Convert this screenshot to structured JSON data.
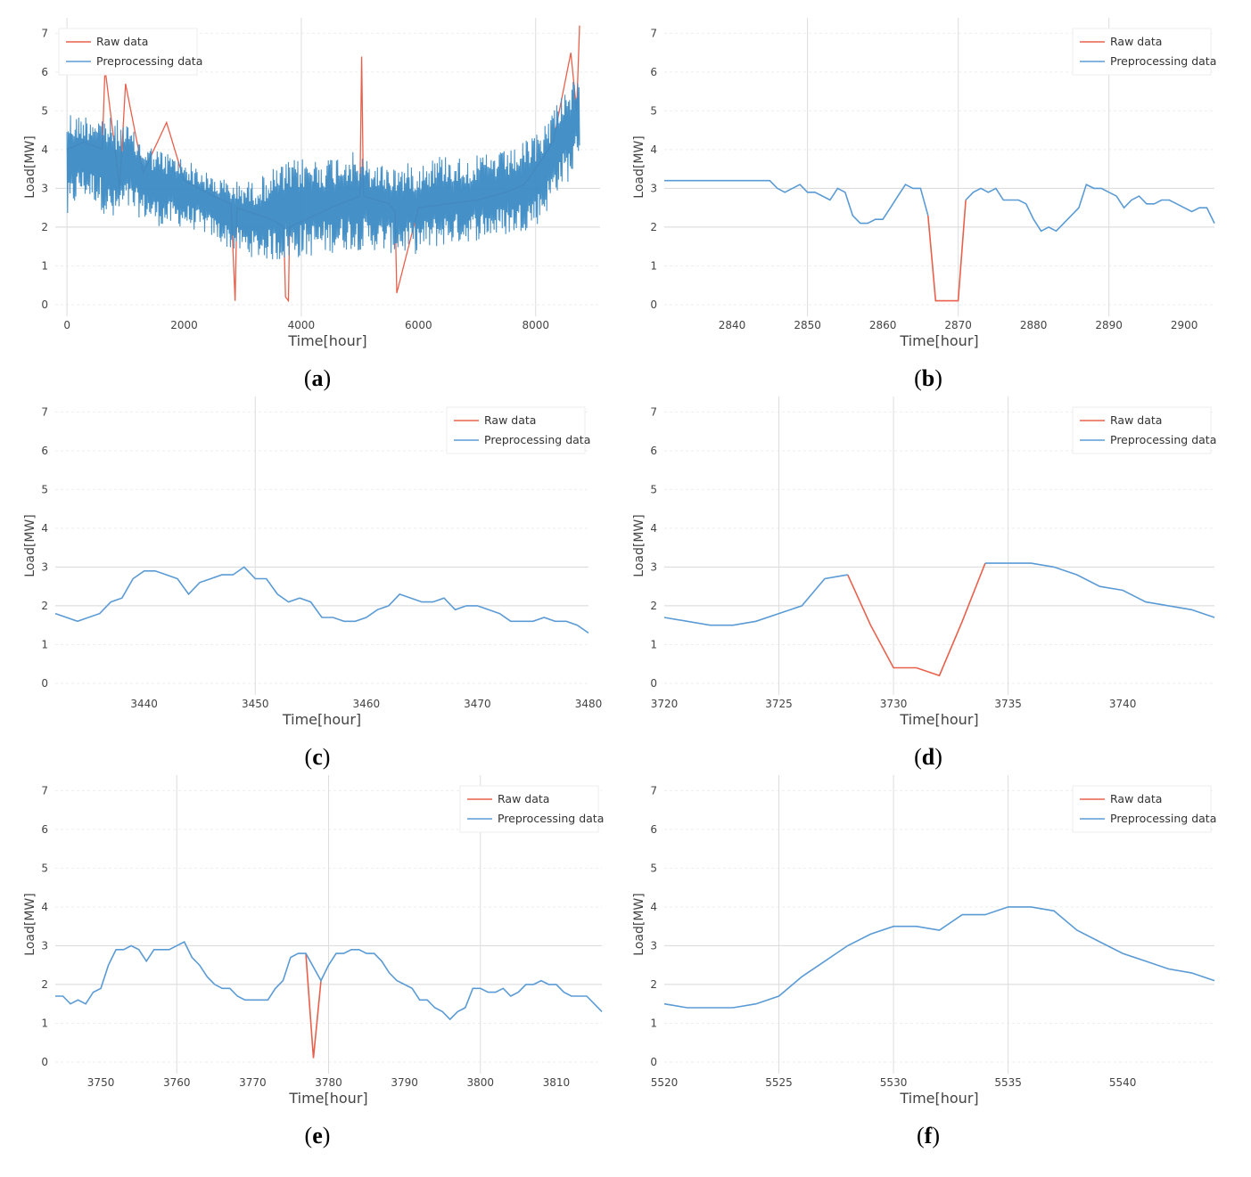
{
  "colors": {
    "raw": "#e8604c",
    "pre": "#5b9bd5",
    "grid": "#e6e6e6",
    "axis": "#555555"
  },
  "legend": [
    "Raw data",
    "Preprocessing data"
  ],
  "captions": [
    {
      "open": "(",
      "letter": "a",
      "close": ")"
    },
    {
      "open": "(",
      "letter": "b",
      "close": ")"
    },
    {
      "open": "(",
      "letter": "c",
      "close": ")"
    },
    {
      "open": "(",
      "letter": "d",
      "close": ")"
    },
    {
      "open": "(",
      "letter": "e",
      "close": ")"
    },
    {
      "open": "(",
      "letter": "f",
      "close": ")"
    }
  ],
  "chart_data": [
    {
      "type": "line",
      "xlabel": "Time[hour]",
      "ylabel": "Load[MW]",
      "xlim": [
        -200,
        9100
      ],
      "ylim": [
        -0.3,
        7.4
      ],
      "xticks": [
        0,
        2000,
        4000,
        6000,
        8000
      ],
      "yticks": [
        0,
        1,
        2,
        3,
        4,
        5,
        6,
        7
      ],
      "gridx": [
        0,
        4000,
        8000
      ],
      "gridy": [
        2,
        3
      ],
      "legend_pos": "top-left",
      "dense": true,
      "series": [
        {
          "name": "Raw data",
          "x": [
            0,
            300,
            600,
            650,
            900,
            1000,
            1300,
            1700,
            2000,
            2500,
            2800,
            2870,
            2900,
            3500,
            3700,
            3730,
            3780,
            3800,
            4500,
            5000,
            5030,
            5060,
            5500,
            5600,
            5630,
            6000,
            7000,
            7500,
            7800,
            8000,
            8300,
            8600,
            8700,
            8750
          ],
          "y": [
            4.0,
            4.2,
            4.0,
            6.1,
            3.0,
            5.7,
            3.4,
            4.7,
            3.2,
            2.8,
            2.6,
            0.1,
            2.5,
            2.2,
            2.0,
            0.2,
            0.1,
            2.0,
            2.5,
            2.8,
            6.4,
            2.8,
            2.6,
            2.4,
            0.3,
            2.5,
            2.7,
            2.9,
            3.1,
            3.5,
            4.2,
            6.5,
            5.0,
            7.2
          ]
        },
        {
          "name": "Preprocessing data",
          "x": [
            0,
            200,
            500,
            800,
            1000,
            1300,
            1600,
            2000,
            2400,
            2800,
            3200,
            3600,
            4000,
            4400,
            4800,
            5200,
            5600,
            6000,
            6400,
            6800,
            7200,
            7600,
            8000,
            8200,
            8400,
            8600,
            8750
          ],
          "lo": [
            2.0,
            2.8,
            2.6,
            2.0,
            2.4,
            2.2,
            2.0,
            2.0,
            1.8,
            1.4,
            1.2,
            1.1,
            1.2,
            1.3,
            1.4,
            1.4,
            1.3,
            1.3,
            1.5,
            1.6,
            1.7,
            1.8,
            2.0,
            2.4,
            3.0,
            3.2,
            4.0
          ],
          "hi": [
            5.1,
            4.9,
            5.0,
            4.8,
            4.7,
            4.2,
            4.0,
            3.8,
            3.4,
            3.2,
            3.2,
            3.6,
            3.8,
            3.8,
            4.0,
            3.7,
            3.6,
            3.7,
            3.9,
            3.8,
            3.9,
            4.0,
            4.4,
            4.8,
            5.4,
            5.8,
            5.7
          ]
        }
      ]
    },
    {
      "type": "line",
      "xlabel": "Time[hour]",
      "ylabel": "Load[MW]",
      "xlim": [
        2831,
        2904
      ],
      "ylim": [
        -0.3,
        7.4
      ],
      "xticks": [
        2840,
        2850,
        2860,
        2870,
        2880,
        2890,
        2900
      ],
      "yticks": [
        0,
        1,
        2,
        3,
        4,
        5,
        6,
        7
      ],
      "gridx": [
        2850,
        2870,
        2890
      ],
      "gridy": [
        2,
        3
      ],
      "legend_pos": "top-right",
      "series": [
        {
          "name": "Raw data",
          "x": [
            2866,
            2867,
            2868,
            2869,
            2870,
            2871
          ],
          "y": [
            2.3,
            0.1,
            0.1,
            0.1,
            0.1,
            2.7
          ]
        },
        {
          "name": "Preprocessing data",
          "x": [
            2831,
            2835,
            2840,
            2845,
            2846,
            2847,
            2848,
            2849,
            2850,
            2851,
            2852,
            2853,
            2854,
            2855,
            2856,
            2857,
            2858,
            2859,
            2860,
            2861,
            2862,
            2863,
            2864,
            2865,
            2866,
            2871,
            2872,
            2873,
            2874,
            2875,
            2876,
            2877,
            2878,
            2879,
            2880,
            2881,
            2882,
            2883,
            2884,
            2885,
            2886,
            2887,
            2888,
            2889,
            2890,
            2891,
            2892,
            2893,
            2894,
            2895,
            2896,
            2897,
            2898,
            2899,
            2900,
            2901,
            2902,
            2903,
            2904
          ],
          "y": [
            3.2,
            3.2,
            3.2,
            3.2,
            3.0,
            2.9,
            3.0,
            3.1,
            2.9,
            2.9,
            2.8,
            2.7,
            3.0,
            2.9,
            2.3,
            2.1,
            2.1,
            2.2,
            2.2,
            2.5,
            2.8,
            3.1,
            3.0,
            3.0,
            2.3,
            2.7,
            2.9,
            3.0,
            2.9,
            3.0,
            2.7,
            2.7,
            2.7,
            2.6,
            2.2,
            1.9,
            2.0,
            1.9,
            2.1,
            2.3,
            2.5,
            3.1,
            3.0,
            3.0,
            2.9,
            2.8,
            2.5,
            2.7,
            2.8,
            2.6,
            2.6,
            2.7,
            2.7,
            2.6,
            2.5,
            2.4,
            2.5,
            2.5,
            2.1
          ]
        }
      ]
    },
    {
      "type": "line",
      "xlabel": "Time[hour]",
      "ylabel": "Load[MW]",
      "xlim": [
        3432,
        3480
      ],
      "ylim": [
        -0.3,
        7.4
      ],
      "xticks": [
        3440,
        3450,
        3460,
        3470,
        3480
      ],
      "yticks": [
        0,
        1,
        2,
        3,
        4,
        5,
        6,
        7
      ],
      "gridx": [
        3450
      ],
      "gridy": [
        2,
        3
      ],
      "legend_pos": "top-right",
      "series": [
        {
          "name": "Raw data",
          "x": [],
          "y": []
        },
        {
          "name": "Preprocessing data",
          "x": [
            3432,
            3434,
            3436,
            3437,
            3438,
            3439,
            3440,
            3441,
            3442,
            3443,
            3444,
            3445,
            3446,
            3447,
            3448,
            3449,
            3450,
            3451,
            3452,
            3453,
            3454,
            3455,
            3456,
            3457,
            3458,
            3459,
            3460,
            3461,
            3462,
            3463,
            3464,
            3465,
            3466,
            3467,
            3468,
            3469,
            3470,
            3471,
            3472,
            3473,
            3474,
            3475,
            3476,
            3477,
            3478,
            3479,
            3480
          ],
          "y": [
            1.8,
            1.6,
            1.8,
            2.1,
            2.2,
            2.7,
            2.9,
            2.9,
            2.8,
            2.7,
            2.3,
            2.6,
            2.7,
            2.8,
            2.8,
            3.0,
            2.7,
            2.7,
            2.3,
            2.1,
            2.2,
            2.1,
            1.7,
            1.7,
            1.6,
            1.6,
            1.7,
            1.9,
            2.0,
            2.3,
            2.2,
            2.1,
            2.1,
            2.2,
            1.9,
            2.0,
            2.0,
            1.9,
            1.8,
            1.6,
            1.6,
            1.6,
            1.7,
            1.6,
            1.6,
            1.5,
            1.3
          ]
        }
      ]
    },
    {
      "type": "line",
      "xlabel": "Time[hour]",
      "ylabel": "Load[MW]",
      "xlim": [
        3720,
        3744
      ],
      "ylim": [
        -0.3,
        7.4
      ],
      "xticks": [
        3720,
        3725,
        3730,
        3735,
        3740
      ],
      "yticks": [
        0,
        1,
        2,
        3,
        4,
        5,
        6,
        7
      ],
      "gridx": [
        3725,
        3730,
        3735
      ],
      "gridy": [
        2,
        3
      ],
      "legend_pos": "top-right",
      "series": [
        {
          "name": "Raw data",
          "x": [
            3728,
            3729,
            3730,
            3731,
            3732,
            3733,
            3734
          ],
          "y": [
            2.8,
            1.5,
            0.4,
            0.4,
            0.2,
            1.6,
            3.1
          ]
        },
        {
          "name": "Preprocessing data",
          "x": [
            3720,
            3721,
            3722,
            3723,
            3724,
            3725,
            3726,
            3727,
            3728,
            3734,
            3735,
            3736,
            3737,
            3738,
            3739,
            3740,
            3741,
            3742,
            3743,
            3744
          ],
          "y": [
            1.7,
            1.6,
            1.5,
            1.5,
            1.6,
            1.8,
            2.0,
            2.7,
            2.8,
            3.1,
            3.1,
            3.1,
            3.0,
            2.8,
            2.5,
            2.4,
            2.1,
            2.0,
            1.9,
            1.7
          ]
        }
      ]
    },
    {
      "type": "line",
      "xlabel": "Time[hour]",
      "ylabel": "Load[MW]",
      "xlim": [
        3744,
        3816
      ],
      "ylim": [
        -0.3,
        7.4
      ],
      "xticks": [
        3750,
        3760,
        3770,
        3780,
        3790,
        3800,
        3810
      ],
      "yticks": [
        0,
        1,
        2,
        3,
        4,
        5,
        6,
        7
      ],
      "gridx": [
        3760,
        3780,
        3800
      ],
      "gridy": [
        2,
        3
      ],
      "legend_pos": "top-right",
      "series": [
        {
          "name": "Raw data",
          "x": [
            3777,
            3778,
            3779
          ],
          "y": [
            2.8,
            0.1,
            2.1
          ]
        },
        {
          "name": "Preprocessing data",
          "x": [
            3744,
            3745,
            3746,
            3747,
            3748,
            3749,
            3750,
            3751,
            3752,
            3753,
            3754,
            3755,
            3756,
            3757,
            3758,
            3759,
            3760,
            3761,
            3762,
            3763,
            3764,
            3765,
            3766,
            3767,
            3768,
            3769,
            3770,
            3771,
            3772,
            3773,
            3774,
            3775,
            3776,
            3777,
            3779,
            3780,
            3781,
            3782,
            3783,
            3784,
            3785,
            3786,
            3787,
            3788,
            3789,
            3790,
            3791,
            3792,
            3793,
            3794,
            3795,
            3796,
            3797,
            3798,
            3799,
            3800,
            3801,
            3802,
            3803,
            3804,
            3805,
            3806,
            3807,
            3808,
            3809,
            3810,
            3811,
            3812,
            3813,
            3814,
            3815,
            3816
          ],
          "y": [
            1.7,
            1.7,
            1.5,
            1.6,
            1.5,
            1.8,
            1.9,
            2.5,
            2.9,
            2.9,
            3.0,
            2.9,
            2.6,
            2.9,
            2.9,
            2.9,
            3.0,
            3.1,
            2.7,
            2.5,
            2.2,
            2.0,
            1.9,
            1.9,
            1.7,
            1.6,
            1.6,
            1.6,
            1.6,
            1.9,
            2.1,
            2.7,
            2.8,
            2.8,
            2.1,
            2.5,
            2.8,
            2.8,
            2.9,
            2.9,
            2.8,
            2.8,
            2.6,
            2.3,
            2.1,
            2.0,
            1.9,
            1.6,
            1.6,
            1.4,
            1.3,
            1.1,
            1.3,
            1.4,
            1.9,
            1.9,
            1.8,
            1.8,
            1.9,
            1.7,
            1.8,
            2.0,
            2.0,
            2.1,
            2.0,
            2.0,
            1.8,
            1.7,
            1.7,
            1.7,
            1.5,
            1.3
          ]
        }
      ]
    },
    {
      "type": "line",
      "xlabel": "Time[hour]",
      "ylabel": "Load[MW]",
      "xlim": [
        5520,
        5544
      ],
      "ylim": [
        -0.3,
        7.4
      ],
      "xticks": [
        5520,
        5525,
        5530,
        5535,
        5540
      ],
      "yticks": [
        0,
        1,
        2,
        3,
        4,
        5,
        6,
        7
      ],
      "gridx": [
        5525,
        5530,
        5535
      ],
      "gridy": [
        2,
        3
      ],
      "legend_pos": "top-right",
      "series": [
        {
          "name": "Raw data",
          "x": [],
          "y": []
        },
        {
          "name": "Preprocessing data",
          "x": [
            5520,
            5521,
            5522,
            5523,
            5524,
            5525,
            5526,
            5527,
            5528,
            5529,
            5530,
            5531,
            5532,
            5533,
            5534,
            5535,
            5536,
            5537,
            5538,
            5539,
            5540,
            5541,
            5542,
            5543,
            5544
          ],
          "y": [
            1.5,
            1.4,
            1.4,
            1.4,
            1.5,
            1.7,
            2.2,
            2.6,
            3.0,
            3.3,
            3.5,
            3.5,
            3.4,
            3.8,
            3.8,
            4.0,
            4.0,
            3.9,
            3.4,
            3.1,
            2.8,
            2.6,
            2.4,
            2.3,
            2.1
          ]
        }
      ]
    }
  ]
}
